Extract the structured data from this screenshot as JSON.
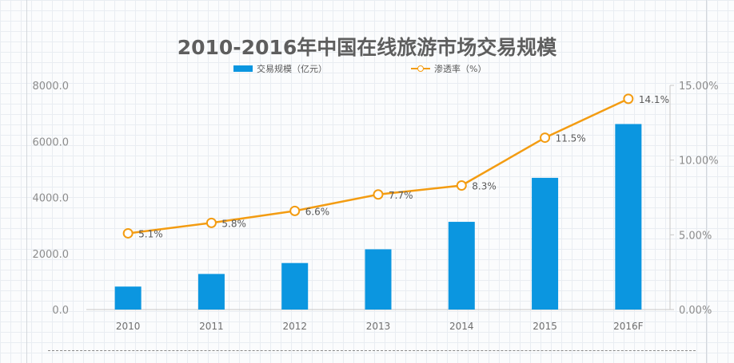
{
  "chart_data": {
    "type": "bar",
    "title": "2010-2016年中国在线旅游市场交易规模",
    "categories": [
      "2010",
      "2011",
      "2012",
      "2013",
      "2014",
      "2015",
      "2016F"
    ],
    "series": [
      {
        "name": "交易规模（亿元）",
        "type": "bar",
        "axis": "left",
        "values": [
          820,
          1270,
          1660,
          2150,
          3130,
          4700,
          6620
        ]
      },
      {
        "name": "渗透率（%）",
        "type": "line",
        "axis": "right",
        "values": [
          5.1,
          5.8,
          6.6,
          7.7,
          8.3,
          11.5,
          14.1
        ],
        "labels": [
          "5.1%",
          "5.8%",
          "6.6%",
          "7.7%",
          "8.3%",
          "11.5%",
          "14.1%"
        ]
      }
    ],
    "y_left": {
      "ylim": [
        0,
        8000
      ],
      "ticks": [
        "0.0",
        "2000.0",
        "4000.0",
        "6000.0",
        "8000.0"
      ]
    },
    "y_right": {
      "ylim": [
        0,
        15
      ],
      "ticks": [
        "0.00%",
        "5.00%",
        "10.00%",
        "15.00%"
      ]
    },
    "grid": false,
    "legend": "top-center",
    "colors": {
      "bar": "#0b96e0",
      "line": "#f39c12",
      "marker_fill": "#ffffff",
      "axis": "#c8c8c8"
    }
  }
}
